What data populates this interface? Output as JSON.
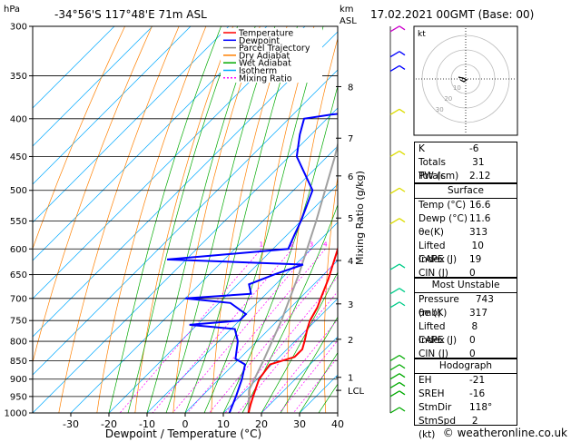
{
  "header": {
    "hpa_label": "hPa",
    "location": "-34°56'S  117°48'E  71m  ASL",
    "km_label": "km",
    "asl_label": "ASL",
    "datetime": "17.02.2021  00GMT  (Base: 00)"
  },
  "chart_data": {
    "type": "skewt-logp",
    "xlabel": "Dewpoint / Temperature (°C)",
    "ylabel_right": "Mixing Ratio (g/kg)",
    "pressure_levels": [
      300,
      350,
      400,
      450,
      500,
      550,
      600,
      650,
      700,
      750,
      800,
      850,
      900,
      950,
      1000
    ],
    "pressure_tick_labels": [
      "300",
      "350",
      "400",
      "450",
      "500",
      "550",
      "600",
      "650",
      "700",
      "750",
      "800",
      "850",
      "900",
      "950",
      "1000"
    ],
    "temperature_ticks": [
      -30,
      -20,
      -10,
      0,
      10,
      20,
      30,
      40
    ],
    "temperature_tick_labels": [
      "-30",
      "-20",
      "-10",
      "0",
      "10",
      "20",
      "30",
      "40"
    ],
    "temperature_range": [
      -40,
      40
    ],
    "pressure_range": [
      300,
      1000
    ],
    "skew_deg_per_log": 80,
    "km_ticks": [
      {
        "label": "8",
        "p": 362
      },
      {
        "label": "7",
        "p": 425
      },
      {
        "label": "6",
        "p": 478
      },
      {
        "label": "5",
        "p": 545
      },
      {
        "label": "4",
        "p": 622
      },
      {
        "label": "3",
        "p": 712
      },
      {
        "label": "2",
        "p": 795
      },
      {
        "label": "1",
        "p": 895
      },
      {
        "label": "LCL",
        "p": 932
      }
    ],
    "mixing_ratio_labels": [
      "1",
      "2",
      "3",
      "4",
      "6",
      "8",
      "10",
      "15",
      "20",
      "25"
    ],
    "mixing_ratio_values": [
      1,
      2,
      3,
      4,
      6,
      8,
      10,
      15,
      20,
      25
    ],
    "mixing_ratio_label_p": 600,
    "legend": [
      {
        "name": "Temperature",
        "color": "#ff0000"
      },
      {
        "name": "Dewpoint",
        "color": "#0000ff"
      },
      {
        "name": "Parcel Trajectory",
        "color": "#808080"
      },
      {
        "name": "Dry Adiabat",
        "color": "#ff8000"
      },
      {
        "name": "Wet Adiabat",
        "color": "#00aa00"
      },
      {
        "name": "Isotherm",
        "color": "#00aaff"
      },
      {
        "name": "Mixing Ratio",
        "color": "#ff00ff"
      }
    ],
    "temperature_profile": [
      {
        "p": 1000,
        "t": 16.6
      },
      {
        "p": 975,
        "t": 15.0
      },
      {
        "p": 950,
        "t": 13.5
      },
      {
        "p": 925,
        "t": 12.0
      },
      {
        "p": 900,
        "t": 10.5
      },
      {
        "p": 860,
        "t": 9.5
      },
      {
        "p": 840,
        "t": 14.0
      },
      {
        "p": 820,
        "t": 14.0
      },
      {
        "p": 800,
        "t": 12.5
      },
      {
        "p": 770,
        "t": 10.0
      },
      {
        "p": 750,
        "t": 8.5
      },
      {
        "p": 720,
        "t": 7.0
      },
      {
        "p": 700,
        "t": 5.5
      },
      {
        "p": 660,
        "t": 2.5
      },
      {
        "p": 600,
        "t": -3.0
      },
      {
        "p": 550,
        "t": -8.0
      },
      {
        "p": 500,
        "t": -14.0
      },
      {
        "p": 450,
        "t": -19.0
      },
      {
        "p": 400,
        "t": -26.5
      },
      {
        "p": 370,
        "t": -30.0
      },
      {
        "p": 350,
        "t": -31.0
      },
      {
        "p": 320,
        "t": -35.5
      },
      {
        "p": 300,
        "t": -39.0
      }
    ],
    "dewpoint_profile": [
      {
        "p": 1000,
        "t": 11.6
      },
      {
        "p": 950,
        "t": 9.0
      },
      {
        "p": 900,
        "t": 6.0
      },
      {
        "p": 860,
        "t": 3.0
      },
      {
        "p": 845,
        "t": -1.0
      },
      {
        "p": 800,
        "t": -5.0
      },
      {
        "p": 770,
        "t": -9.0
      },
      {
        "p": 760,
        "t": -22.0
      },
      {
        "p": 750,
        "t": -10.0
      },
      {
        "p": 735,
        "t": -10.0
      },
      {
        "p": 710,
        "t": -17.0
      },
      {
        "p": 700,
        "t": -30.0
      },
      {
        "p": 690,
        "t": -14.0
      },
      {
        "p": 670,
        "t": -17.0
      },
      {
        "p": 650,
        "t": -13.0
      },
      {
        "p": 630,
        "t": -8.0
      },
      {
        "p": 620,
        "t": -45.0
      },
      {
        "p": 600,
        "t": -16.0
      },
      {
        "p": 575,
        "t": -18.0
      },
      {
        "p": 550,
        "t": -20.0
      },
      {
        "p": 500,
        "t": -25.0
      },
      {
        "p": 450,
        "t": -38.0
      },
      {
        "p": 420,
        "t": -43.0
      },
      {
        "p": 400,
        "t": -46.0
      },
      {
        "p": 395,
        "t": -40.0
      },
      {
        "p": 390,
        "t": -31.0
      },
      {
        "p": 380,
        "t": -31.0
      },
      {
        "p": 370,
        "t": -34.0
      },
      {
        "p": 340,
        "t": -36.0
      },
      {
        "p": 300,
        "t": -42.0
      }
    ],
    "parcel_trajectory": [
      {
        "p": 1000,
        "t": 16.6
      },
      {
        "p": 932,
        "t": 10.8
      },
      {
        "p": 850,
        "t": 6.8
      },
      {
        "p": 750,
        "t": 1.0
      },
      {
        "p": 650,
        "t": -6.5
      },
      {
        "p": 550,
        "t": -16.0
      },
      {
        "p": 450,
        "t": -28.0
      },
      {
        "p": 350,
        "t": -44.0
      },
      {
        "p": 300,
        "t": -54.0
      }
    ],
    "wind_barbs": [
      {
        "p": 305,
        "color": "#cc00cc"
      },
      {
        "p": 330,
        "color": "#0000ff"
      },
      {
        "p": 345,
        "color": "#0000ff"
      },
      {
        "p": 395,
        "color": "#dddd00"
      },
      {
        "p": 450,
        "color": "#dddd00"
      },
      {
        "p": 505,
        "color": "#dddd00"
      },
      {
        "p": 555,
        "color": "#dddd00"
      },
      {
        "p": 640,
        "color": "#00cc88"
      },
      {
        "p": 690,
        "color": "#00cc88"
      },
      {
        "p": 720,
        "color": "#00cc88"
      },
      {
        "p": 850,
        "color": "#00aa00"
      },
      {
        "p": 875,
        "color": "#00aa00"
      },
      {
        "p": 900,
        "color": "#00aa00"
      },
      {
        "p": 925,
        "color": "#00aa00"
      },
      {
        "p": 950,
        "color": "#00aa00"
      },
      {
        "p": 1000,
        "color": "#00aa00"
      }
    ]
  },
  "hodograph": {
    "unit_label": "kt",
    "ring_labels": [
      "10",
      "20",
      "30"
    ]
  },
  "indices": [
    {
      "label": "K",
      "value": "-6"
    },
    {
      "label": "Totals Totals",
      "value": "31"
    },
    {
      "label": "PW (cm)",
      "value": "2.12"
    }
  ],
  "surface": {
    "title": "Surface",
    "rows": [
      {
        "label": "Temp (°C)",
        "value": "16.6"
      },
      {
        "label": "Dewp (°C)",
        "value": "11.6"
      },
      {
        "label": "θe(K)",
        "value": "313"
      },
      {
        "label": "Lifted Index",
        "value": "10"
      },
      {
        "label": "CAPE (J)",
        "value": "19"
      },
      {
        "label": "CIN (J)",
        "value": "0"
      }
    ]
  },
  "most_unstable": {
    "title": "Most Unstable",
    "rows": [
      {
        "label": "Pressure (mb)",
        "value": "743"
      },
      {
        "label": "θe (K)",
        "value": "317"
      },
      {
        "label": "Lifted Index",
        "value": "8"
      },
      {
        "label": "CAPE (J)",
        "value": "0"
      },
      {
        "label": "CIN (J)",
        "value": "0"
      }
    ]
  },
  "hodograph_table": {
    "title": "Hodograph",
    "rows": [
      {
        "label": "EH",
        "value": "-21"
      },
      {
        "label": "SREH",
        "value": "-16"
      },
      {
        "label": "StmDir",
        "value": "118°"
      },
      {
        "label": "StmSpd (kt)",
        "value": "2"
      }
    ]
  },
  "copyright": "© weatheronline.co.uk"
}
